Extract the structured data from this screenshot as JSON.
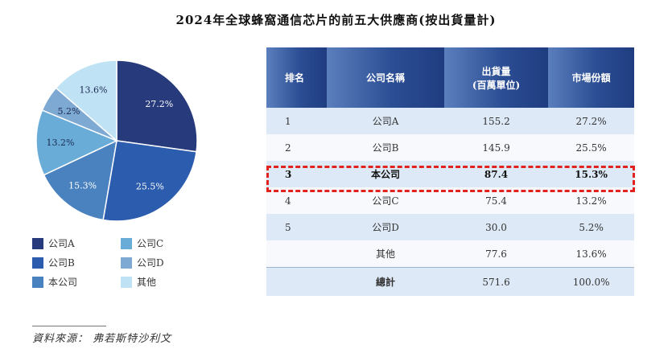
{
  "title": "2024年全球蜂窩通信芯片的前五大供應商(按出貨量計)",
  "chart_data": {
    "type": "pie",
    "title": "2024年全球蜂窩通信芯片的前五大供應商(按出貨量計)",
    "categories": [
      "公司A",
      "公司B",
      "本公司",
      "公司C",
      "公司D",
      "其他"
    ],
    "values": [
      27.2,
      25.5,
      15.3,
      13.2,
      5.2,
      13.6
    ],
    "labels": [
      "27.2%",
      "25.5%",
      "15.3%",
      "13.2%",
      "5.2%",
      "13.6%"
    ],
    "colors": [
      "#263a7c",
      "#2b5cad",
      "#4a82bf",
      "#6aacd8",
      "#7ea9d3",
      "#bfe3f5"
    ],
    "legend_position": "bottom"
  },
  "legend": [
    {
      "label": "公司A",
      "color": "#263a7c"
    },
    {
      "label": "公司C",
      "color": "#6aacd8"
    },
    {
      "label": "公司B",
      "color": "#2b5cad"
    },
    {
      "label": "公司D",
      "color": "#7ea9d3"
    },
    {
      "label": "本公司",
      "color": "#4a82bf"
    },
    {
      "label": "其他",
      "color": "#bfe3f5"
    }
  ],
  "table": {
    "headers": {
      "rank": "排名",
      "name": "公司名稱",
      "shipments_line1": "出貨量",
      "shipments_line2": "(百萬單位)",
      "share": "市場份額"
    },
    "rows": [
      {
        "rank": "1",
        "name": "公司A",
        "shipments": "155.2",
        "share": "27.2%"
      },
      {
        "rank": "2",
        "name": "公司B",
        "shipments": "145.9",
        "share": "25.5%"
      },
      {
        "rank": "3",
        "name": "本公司",
        "shipments": "87.4",
        "share": "15.3%"
      },
      {
        "rank": "4",
        "name": "公司C",
        "shipments": "75.4",
        "share": "13.2%"
      },
      {
        "rank": "5",
        "name": "公司D",
        "shipments": "30.0",
        "share": "5.2%"
      },
      {
        "rank": "",
        "name": "其他",
        "shipments": "77.6",
        "share": "13.6%"
      }
    ],
    "total": {
      "name": "總計",
      "shipments": "571.6",
      "share": "100.0%"
    }
  },
  "source": "資料來源： 弗若斯特沙利文"
}
